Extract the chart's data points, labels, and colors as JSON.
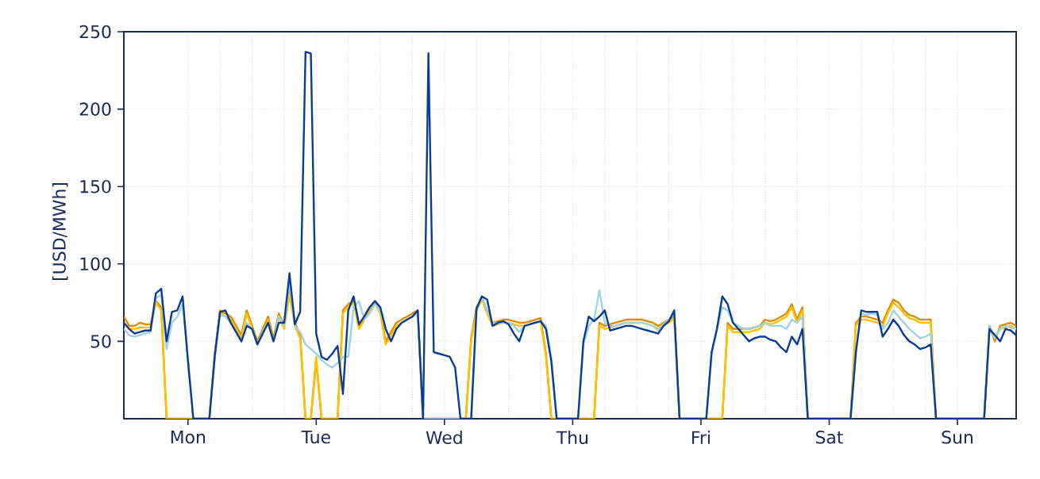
{
  "chart_data": {
    "type": "line",
    "ylabel": "[USD/MWh]",
    "ylim": [
      0,
      250
    ],
    "categories": [
      null,
      null,
      null,
      null,
      null,
      null,
      null,
      null,
      null,
      null,
      null,
      null,
      "Mon",
      null,
      null,
      null,
      null,
      null,
      null,
      null,
      null,
      null,
      null,
      null,
      null,
      null,
      null,
      null,
      null,
      null,
      null,
      null,
      null,
      null,
      null,
      null,
      "Tue",
      null,
      null,
      null,
      null,
      null,
      null,
      null,
      null,
      null,
      null,
      null,
      null,
      null,
      null,
      null,
      null,
      null,
      null,
      null,
      null,
      null,
      null,
      null,
      "Wed",
      null,
      null,
      null,
      null,
      null,
      null,
      null,
      null,
      null,
      null,
      null,
      null,
      null,
      null,
      null,
      null,
      null,
      null,
      null,
      null,
      null,
      null,
      null,
      "Thu",
      null,
      null,
      null,
      null,
      null,
      null,
      null,
      null,
      null,
      null,
      null,
      null,
      null,
      null,
      null,
      null,
      null,
      null,
      null,
      null,
      null,
      null,
      null,
      "Fri",
      null,
      null,
      null,
      null,
      null,
      null,
      null,
      null,
      null,
      null,
      null,
      null,
      null,
      null,
      null,
      null,
      null,
      null,
      null,
      null,
      null,
      null,
      null,
      "Sat",
      null,
      null,
      null,
      null,
      null,
      null,
      null,
      null,
      null,
      null,
      null,
      null,
      null,
      null,
      null,
      null,
      null,
      null,
      null,
      null,
      null,
      null,
      null,
      "Sun",
      null,
      null,
      null,
      null,
      null,
      null,
      null,
      null,
      null,
      null,
      null
    ],
    "yticks": [
      50,
      100,
      150,
      200,
      250
    ],
    "grid": true,
    "series": [
      {
        "color": "#e08a00",
        "values": [
          66,
          60,
          60,
          62,
          61,
          61,
          76,
          72,
          0,
          0,
          0,
          0,
          0,
          0,
          0,
          0,
          0,
          42,
          70,
          68,
          66,
          60,
          54,
          70,
          60,
          50,
          58,
          66,
          52,
          68,
          60,
          82,
          62,
          54,
          0,
          0,
          38,
          0,
          0,
          0,
          0,
          70,
          74,
          76,
          60,
          66,
          72,
          76,
          70,
          50,
          56,
          62,
          64,
          66,
          68,
          70,
          0,
          0,
          0,
          0,
          0,
          0,
          0,
          0,
          0,
          52,
          72,
          78,
          70,
          62,
          63,
          64,
          64,
          63,
          62,
          62,
          63,
          64,
          65,
          42,
          0,
          0,
          0,
          0,
          0,
          0,
          0,
          0,
          0,
          62,
          60,
          61,
          62,
          63,
          64,
          64,
          64,
          64,
          63,
          62,
          60,
          62,
          64,
          66,
          0,
          0,
          0,
          0,
          0,
          0,
          0,
          0,
          0,
          62,
          58,
          58,
          58,
          58,
          59,
          60,
          64,
          63,
          64,
          66,
          68,
          74,
          64,
          72,
          0,
          0,
          0,
          0,
          0,
          0,
          0,
          0,
          0,
          62,
          66,
          66,
          65,
          64,
          62,
          70,
          77,
          75,
          70,
          67,
          66,
          64,
          64,
          64,
          0,
          0,
          0,
          0,
          0,
          0,
          0,
          0,
          0,
          0,
          60,
          50,
          60,
          61,
          62,
          60
        ]
      },
      {
        "color": "#ffc000",
        "values": [
          62,
          58,
          58,
          59,
          59,
          59,
          75,
          70,
          0,
          0,
          0,
          0,
          0,
          0,
          0,
          0,
          0,
          40,
          69,
          66,
          64,
          58,
          52,
          68,
          58,
          48,
          56,
          64,
          50,
          66,
          58,
          80,
          60,
          52,
          0,
          0,
          40,
          0,
          0,
          0,
          0,
          68,
          72,
          75,
          58,
          64,
          70,
          75,
          68,
          48,
          54,
          60,
          62,
          64,
          66,
          68,
          0,
          0,
          0,
          0,
          0,
          0,
          0,
          0,
          0,
          50,
          70,
          77,
          68,
          60,
          61,
          62,
          62,
          61,
          60,
          60,
          61,
          62,
          63,
          40,
          0,
          0,
          0,
          0,
          0,
          0,
          0,
          0,
          0,
          60,
          58,
          59,
          60,
          61,
          62,
          62,
          62,
          62,
          61,
          60,
          58,
          60,
          62,
          65,
          0,
          0,
          0,
          0,
          0,
          0,
          0,
          0,
          0,
          60,
          56,
          56,
          56,
          56,
          57,
          58,
          62,
          61,
          62,
          64,
          66,
          72,
          62,
          70,
          0,
          0,
          0,
          0,
          0,
          0,
          0,
          0,
          0,
          60,
          64,
          64,
          63,
          62,
          60,
          68,
          75,
          72,
          68,
          65,
          64,
          62,
          62,
          62,
          0,
          0,
          0,
          0,
          0,
          0,
          0,
          0,
          0,
          0,
          58,
          52,
          58,
          59,
          60,
          58
        ]
      },
      {
        "color": "#9dd3e3",
        "values": [
          58,
          54,
          53,
          54,
          55,
          56,
          78,
          80,
          45,
          62,
          66,
          74,
          40,
          0,
          0,
          0,
          0,
          38,
          67,
          66,
          62,
          56,
          50,
          62,
          58,
          48,
          56,
          62,
          50,
          66,
          60,
          88,
          60,
          56,
          48,
          45,
          42,
          38,
          35,
          33,
          36,
          40,
          40,
          72,
          76,
          64,
          68,
          74,
          70,
          58,
          50,
          58,
          62,
          64,
          66,
          68,
          0,
          0,
          0,
          0,
          0,
          0,
          0,
          0,
          0,
          0,
          70,
          79,
          70,
          62,
          62,
          62,
          62,
          60,
          56,
          60,
          61,
          62,
          63,
          60,
          40,
          0,
          0,
          0,
          0,
          0,
          48,
          60,
          64,
          83,
          62,
          60,
          60,
          61,
          62,
          62,
          62,
          62,
          61,
          60,
          57,
          61,
          64,
          68,
          0,
          0,
          0,
          0,
          0,
          0,
          42,
          58,
          72,
          70,
          62,
          60,
          58,
          58,
          59,
          60,
          62,
          60,
          60,
          60,
          58,
          64,
          62,
          66,
          0,
          0,
          0,
          0,
          0,
          0,
          0,
          0,
          0,
          43,
          68,
          67,
          68,
          67,
          58,
          62,
          70,
          66,
          62,
          58,
          55,
          52,
          53,
          55,
          0,
          0,
          0,
          0,
          0,
          0,
          0,
          0,
          0,
          0,
          60,
          52,
          58,
          60,
          59,
          58
        ]
      },
      {
        "color": "#0b3c94",
        "values": [
          62,
          58,
          55,
          56,
          57,
          57,
          81,
          84,
          50,
          69,
          70,
          79,
          37,
          0,
          0,
          0,
          0,
          40,
          69,
          70,
          62,
          56,
          50,
          60,
          58,
          48,
          55,
          62,
          50,
          62,
          62,
          94,
          61,
          69,
          237,
          236,
          55,
          40,
          38,
          42,
          47,
          16,
          70,
          79,
          61,
          66,
          72,
          76,
          72,
          58,
          50,
          58,
          62,
          64,
          66,
          70,
          0,
          236,
          43,
          42,
          41,
          40,
          33,
          0,
          0,
          0,
          71,
          79,
          77,
          60,
          62,
          63,
          61,
          55,
          50,
          60,
          61,
          62,
          63,
          58,
          37,
          0,
          0,
          0,
          0,
          0,
          50,
          66,
          63,
          66,
          70,
          57,
          58,
          59,
          60,
          60,
          59,
          58,
          57,
          56,
          55,
          60,
          63,
          70,
          0,
          0,
          0,
          0,
          0,
          0,
          43,
          58,
          79,
          74,
          62,
          58,
          54,
          50,
          52,
          53,
          53,
          51,
          50,
          46,
          43,
          53,
          48,
          58,
          0,
          0,
          0,
          0,
          0,
          0,
          0,
          0,
          0,
          43,
          70,
          69,
          69,
          69,
          53,
          58,
          64,
          60,
          54,
          50,
          48,
          45,
          46,
          48,
          0,
          0,
          0,
          0,
          0,
          0,
          0,
          0,
          0,
          0,
          58,
          54,
          50,
          58,
          57,
          54
        ]
      }
    ]
  }
}
